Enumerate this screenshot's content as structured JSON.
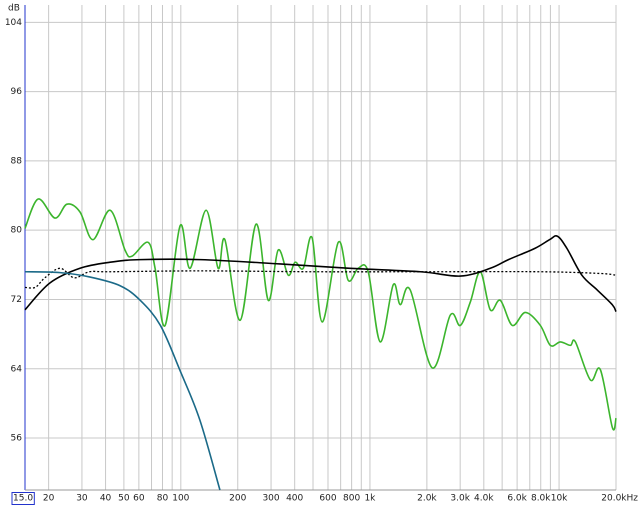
{
  "chart_data": {
    "type": "line",
    "y_label": "dB",
    "xscale": "log",
    "grid": true,
    "xlim": [
      15,
      20000
    ],
    "ylim": [
      50,
      106
    ],
    "xticks": [
      {
        "value": 15,
        "label": "15.0"
      },
      20,
      30,
      40,
      50,
      60,
      80,
      100,
      200,
      300,
      400,
      600,
      800,
      {
        "value": 1000,
        "label": "1k"
      },
      {
        "value": 2000,
        "label": "2.0k"
      },
      {
        "value": 3000,
        "label": "3.0k"
      },
      {
        "value": 4000,
        "label": "4.0k"
      },
      {
        "value": 6000,
        "label": "6.0k"
      },
      {
        "value": 8000,
        "label": "8.0k"
      },
      {
        "value": 10000,
        "label": "10k"
      },
      {
        "value": 20000,
        "label": "20.0kHz"
      }
    ],
    "xminorticks": [
      70,
      90,
      500,
      700,
      900,
      5000,
      7000,
      9000
    ],
    "yticks": [
      56,
      64,
      72,
      80,
      88,
      96,
      104
    ],
    "series": [
      {
        "color": "#3cb52d",
        "dash": false,
        "x": [
          15,
          17.6,
          21.6,
          25,
          29.3,
          34.3,
          42.3,
          50.7,
          55.2,
          67.1,
          73.1,
          82.6,
          99.1,
          112,
          136,
          157.5,
          171,
          206,
          250,
          290,
          327,
          370,
          402,
          444,
          495,
          559,
          680,
          768,
          867,
          979,
          1133,
          1328,
          1446,
          1633,
          2135,
          2661,
          3005,
          3394,
          3833,
          4329,
          4890,
          5660,
          6632,
          7962,
          8993,
          10157,
          11470,
          12197,
          14640,
          16530,
          19140,
          20000
        ],
        "values": [
          80.2,
          83.6,
          81.4,
          83.0,
          82.1,
          78.9,
          82.3,
          77.7,
          77.0,
          78.6,
          75.6,
          69.0,
          80.5,
          75.6,
          82.3,
          75.6,
          78.9,
          69.6,
          80.7,
          71.9,
          77.7,
          74.8,
          76.3,
          75.6,
          79.1,
          69.4,
          78.6,
          74.2,
          75.6,
          75.2,
          67.1,
          73.7,
          71.4,
          73.1,
          64.1,
          70.2,
          69.0,
          71.7,
          75.2,
          70.8,
          71.9,
          69.0,
          70.5,
          69.0,
          66.7,
          67.1,
          66.7,
          67.1,
          62.7,
          63.9,
          57.2,
          58.3
        ]
      },
      {
        "color": "#000000",
        "dash": false,
        "x": [
          15,
          20.3,
          29.3,
          42.3,
          61,
          127,
          335,
          784,
          1850,
          3005,
          4329,
          5400,
          7450,
          8900,
          9800,
          11000,
          13200,
          15900,
          19100,
          20000
        ],
        "values": [
          70.8,
          73.9,
          75.6,
          76.3,
          76.6,
          76.6,
          76.1,
          75.6,
          75.2,
          74.7,
          75.6,
          76.6,
          77.9,
          78.9,
          79.3,
          77.9,
          74.8,
          73.1,
          71.4,
          70.6
        ]
      },
      {
        "color": "#000000",
        "dash": true,
        "x": [
          15,
          17,
          19.1,
          23,
          27.3,
          32.9,
          42.3,
          127,
          500,
          2000,
          8000,
          16530,
          20000
        ],
        "values": [
          73.4,
          73.4,
          74.5,
          75.6,
          74.5,
          75.2,
          75.2,
          75.3,
          75.2,
          75.2,
          75.2,
          75.0,
          74.8
        ]
      },
      {
        "color": "#1b6a88",
        "dash": false,
        "x": [
          15,
          23,
          32.9,
          47.6,
          61,
          78,
          99,
          126,
          161
        ],
        "values": [
          75.2,
          75.1,
          74.6,
          73.6,
          71.9,
          69.0,
          63.8,
          58.1,
          50.0
        ]
      }
    ]
  }
}
